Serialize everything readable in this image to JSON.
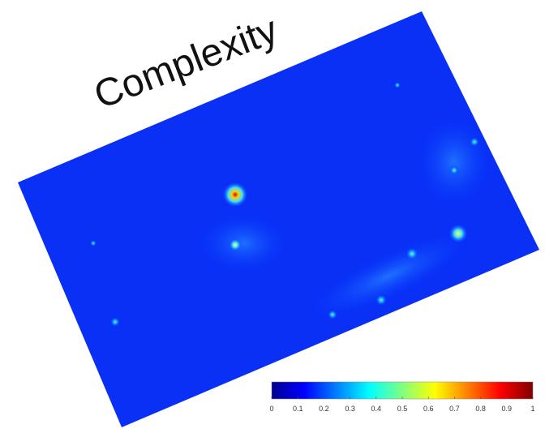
{
  "chart_data": {
    "type": "heatmap",
    "title": "Complexity",
    "colorbar": {
      "lim": [
        0,
        1
      ],
      "ticks": [
        0,
        0.1,
        0.2,
        0.3,
        0.4,
        0.5,
        0.6,
        0.7,
        0.8,
        0.9,
        1
      ],
      "colors": [
        "#00008f",
        "#0000ff",
        "#0080ff",
        "#00ffff",
        "#80ff80",
        "#ffff00",
        "#ff8000",
        "#ff0000",
        "#800000"
      ]
    }
  }
}
